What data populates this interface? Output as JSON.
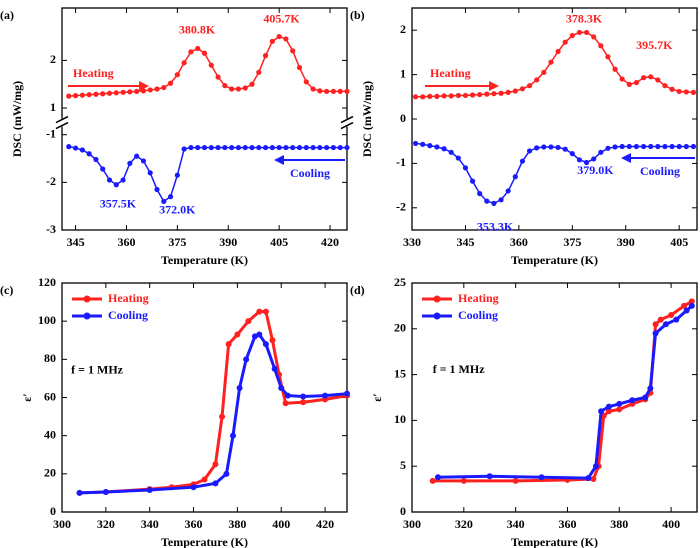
{
  "chart_data": [
    {
      "type": "line",
      "panel": "(a)",
      "xlabel": "Temperature (K)",
      "ylabel": "DSC (mW/mg)",
      "xlim": [
        341,
        425
      ],
      "xticks": [
        345,
        360,
        375,
        390,
        405,
        420
      ],
      "ylim": [
        -3,
        3.1
      ],
      "yticks": [
        -3,
        -2,
        -1,
        1,
        2
      ],
      "y_break": [
        -0.85,
        0.8
      ],
      "legend": "arrows",
      "x": [
        343,
        345,
        347,
        349,
        351,
        353,
        355,
        357,
        359,
        361,
        363,
        365,
        367,
        369,
        371,
        373,
        375,
        377,
        379,
        381,
        383,
        385,
        387,
        389,
        391,
        393,
        395,
        397,
        399,
        401,
        403,
        405,
        407,
        409,
        411,
        413,
        415,
        417,
        419,
        421,
        423,
        425
      ],
      "series": [
        {
          "name": "Heating",
          "color": "#ff2020",
          "values": [
            1.25,
            1.26,
            1.27,
            1.28,
            1.29,
            1.3,
            1.31,
            1.32,
            1.33,
            1.34,
            1.35,
            1.36,
            1.38,
            1.4,
            1.43,
            1.52,
            1.7,
            1.95,
            2.18,
            2.25,
            2.15,
            1.9,
            1.65,
            1.47,
            1.4,
            1.4,
            1.42,
            1.5,
            1.75,
            2.1,
            2.4,
            2.5,
            2.45,
            2.2,
            1.85,
            1.55,
            1.4,
            1.36,
            1.35,
            1.35,
            1.35,
            1.35
          ]
        },
        {
          "name": "Cooling",
          "color": "#1a1aff",
          "values": [
            -1.25,
            -1.28,
            -1.32,
            -1.4,
            -1.52,
            -1.72,
            -1.95,
            -2.05,
            -1.95,
            -1.6,
            -1.45,
            -1.55,
            -1.8,
            -2.15,
            -2.4,
            -2.3,
            -1.85,
            -1.3,
            -1.27,
            -1.27,
            -1.27,
            -1.27,
            -1.27,
            -1.27,
            -1.27,
            -1.27,
            -1.27,
            -1.27,
            -1.27,
            -1.27,
            -1.27,
            -1.27,
            -1.27,
            -1.27,
            -1.27,
            -1.27,
            -1.27,
            -1.27,
            -1.27,
            -1.27,
            -1.27,
            -1.27
          ]
        }
      ],
      "annotations": [
        {
          "text": "380.8K",
          "color": "#ff2020"
        },
        {
          "text": "405.7K",
          "color": "#ff2020"
        },
        {
          "text": "357.5K",
          "color": "#1a1aff"
        },
        {
          "text": "372.0K",
          "color": "#1a1aff"
        }
      ]
    },
    {
      "type": "line",
      "panel": "(b)",
      "xlabel": "Temperature (K)",
      "ylabel": "DSC (mW/mg)",
      "xlim": [
        330,
        410
      ],
      "xticks": [
        330,
        345,
        360,
        375,
        390,
        405
      ],
      "ylim": [
        -2.5,
        2.5
      ],
      "yticks": [
        -2,
        -1,
        0,
        1,
        2
      ],
      "legend": "arrows",
      "x": [
        331,
        333,
        335,
        337,
        339,
        341,
        343,
        345,
        347,
        349,
        351,
        353,
        355,
        357,
        359,
        361,
        363,
        365,
        367,
        369,
        371,
        373,
        375,
        377,
        379,
        381,
        383,
        385,
        387,
        389,
        391,
        393,
        395,
        397,
        399,
        401,
        403,
        405,
        407,
        409
      ],
      "series": [
        {
          "name": "Heating",
          "color": "#ff2020",
          "values": [
            0.5,
            0.5,
            0.51,
            0.51,
            0.52,
            0.52,
            0.53,
            0.53,
            0.54,
            0.55,
            0.56,
            0.57,
            0.58,
            0.6,
            0.63,
            0.68,
            0.75,
            0.88,
            1.05,
            1.28,
            1.52,
            1.73,
            1.88,
            1.95,
            1.95,
            1.85,
            1.65,
            1.4,
            1.12,
            0.9,
            0.78,
            0.82,
            0.93,
            0.95,
            0.88,
            0.75,
            0.67,
            0.62,
            0.61,
            0.6
          ]
        },
        {
          "name": "Cooling",
          "color": "#1a1aff",
          "values": [
            -0.55,
            -0.57,
            -0.6,
            -0.63,
            -0.67,
            -0.75,
            -0.88,
            -1.1,
            -1.4,
            -1.68,
            -1.85,
            -1.9,
            -1.82,
            -1.62,
            -1.3,
            -0.95,
            -0.72,
            -0.65,
            -0.63,
            -0.63,
            -0.64,
            -0.68,
            -0.78,
            -0.92,
            -0.98,
            -0.9,
            -0.75,
            -0.66,
            -0.63,
            -0.62,
            -0.62,
            -0.62,
            -0.62,
            -0.62,
            -0.62,
            -0.62,
            -0.62,
            -0.62,
            -0.62,
            -0.62
          ]
        }
      ],
      "annotations": [
        {
          "text": "378.3K",
          "color": "#ff2020"
        },
        {
          "text": "395.7K",
          "color": "#ff2020"
        },
        {
          "text": "353.3K",
          "color": "#1a1aff"
        },
        {
          "text": "379.0K",
          "color": "#1a1aff"
        }
      ]
    },
    {
      "type": "line",
      "panel": "(c)",
      "xlabel": "Temperature (K)",
      "ylabel": "ε′",
      "xlim": [
        300,
        430
      ],
      "xticks": [
        300,
        320,
        340,
        360,
        380,
        400,
        420
      ],
      "ylim": [
        0,
        120
      ],
      "yticks": [
        0,
        20,
        40,
        60,
        80,
        100,
        120
      ],
      "legend": "upper left",
      "series": [
        {
          "name": "Heating",
          "color": "#ff2020",
          "x": [
            308,
            320,
            340,
            350,
            360,
            365,
            370,
            373,
            376,
            380,
            385,
            390,
            393,
            396,
            399,
            402,
            410,
            420,
            430
          ],
          "values": [
            10,
            10.5,
            12,
            13,
            14.5,
            17,
            25,
            50,
            88,
            93,
            100,
            105,
            105,
            90,
            72,
            57,
            57.5,
            59,
            61
          ]
        },
        {
          "name": "Cooling",
          "color": "#1a1aff",
          "x": [
            308,
            320,
            340,
            360,
            370,
            375,
            378,
            381,
            384,
            388,
            390,
            393,
            397,
            400,
            403,
            410,
            420,
            430
          ],
          "values": [
            10,
            10.5,
            11.5,
            13,
            15,
            20,
            40,
            65,
            80,
            92,
            93,
            88,
            75,
            65,
            61,
            60.5,
            61,
            62
          ]
        }
      ],
      "annotations": [
        {
          "text": "f = 1 MHz",
          "color": "#000000"
        }
      ]
    },
    {
      "type": "line",
      "panel": "(d)",
      "xlabel": "Temperature (K)",
      "ylabel": "ε′",
      "xlim": [
        300,
        410
      ],
      "xticks": [
        300,
        320,
        340,
        360,
        380,
        400
      ],
      "ylim": [
        0,
        25
      ],
      "yticks": [
        0,
        5,
        10,
        15,
        20,
        25
      ],
      "legend": "upper left",
      "series": [
        {
          "name": "Heating",
          "color": "#ff2020",
          "x": [
            308,
            320,
            340,
            360,
            370,
            372,
            374,
            376,
            380,
            385,
            390,
            392,
            394,
            396,
            400,
            405,
            408
          ],
          "values": [
            3.4,
            3.4,
            3.4,
            3.5,
            3.6,
            5,
            10.5,
            11,
            11.2,
            11.8,
            12.3,
            13,
            20.5,
            21,
            21.5,
            22.5,
            23
          ]
        },
        {
          "name": "Cooling",
          "color": "#1a1aff",
          "x": [
            310,
            330,
            350,
            368,
            371,
            373,
            376,
            380,
            385,
            390,
            392,
            394,
            398,
            402,
            406,
            408
          ],
          "values": [
            3.8,
            3.9,
            3.8,
            3.7,
            5,
            11,
            11.5,
            11.8,
            12.2,
            12.5,
            13.5,
            19.5,
            20.5,
            21,
            22,
            22.5
          ]
        }
      ],
      "annotations": [
        {
          "text": "f = 1 MHz",
          "color": "#000000"
        }
      ]
    }
  ]
}
